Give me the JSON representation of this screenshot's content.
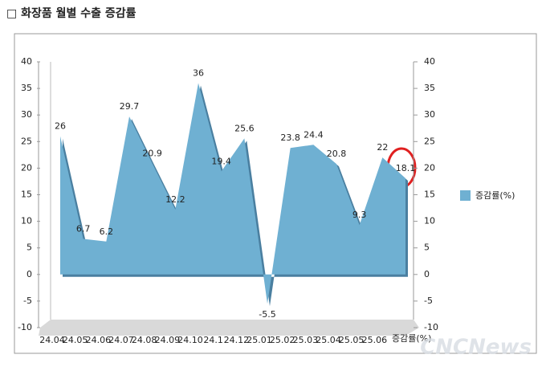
{
  "chart_data": {
    "type": "area",
    "title": "□ 화장품 월별 수출 증감률",
    "categories": [
      "24.04",
      "24.05",
      "24.06",
      "24.07",
      "24.08",
      "24.09",
      "24.10",
      "24.1",
      "24.12",
      "25.01",
      "25.02",
      "25.03",
      "25.04",
      "25.05",
      "25.06",
      null
    ],
    "series": [
      {
        "name": "증감률(%)",
        "color": "#6fb0d2",
        "values": [
          26,
          6.7,
          6.2,
          29.7,
          20.9,
          12.2,
          36,
          19.4,
          25.6,
          -5.5,
          23.8,
          24.4,
          20.8,
          9.3,
          22,
          18.1
        ]
      }
    ],
    "ylim": [
      -10,
      40
    ],
    "yticks": [
      -10,
      -5,
      0,
      5,
      10,
      15,
      20,
      25,
      30,
      35,
      40
    ],
    "y2lim": [
      -10,
      40
    ],
    "y2ticks": [
      -10,
      -5,
      0,
      5,
      10,
      15,
      20,
      25,
      30,
      35,
      40
    ],
    "legend": "right",
    "watermark": "CNCNews"
  }
}
